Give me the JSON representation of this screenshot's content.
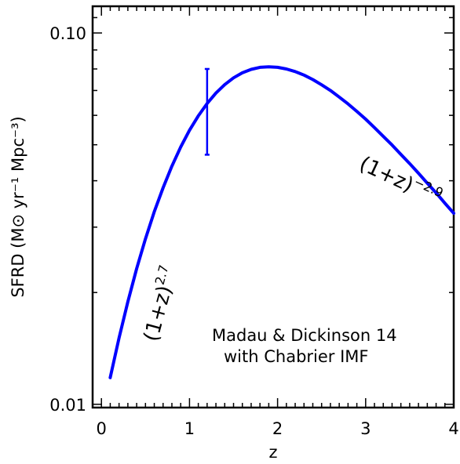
{
  "chart_data": {
    "type": "line",
    "xlabel": "z",
    "ylabel": "SFRD (M⊙ yr⁻¹ Mpc⁻³)",
    "xlim": [
      -0.1,
      4.0
    ],
    "ylim": [
      0.0098,
      0.118
    ],
    "yscale": "log",
    "x_ticks": [
      0,
      1,
      2,
      3,
      4
    ],
    "x_tick_labels": [
      "0",
      "1",
      "2",
      "3",
      "4"
    ],
    "y_ticks": [
      0.01,
      0.1
    ],
    "y_tick_labels": [
      "0.01",
      "0.10"
    ],
    "grid": false,
    "series_color": "#0000ff",
    "series": [
      {
        "x": [
          0.1,
          0.2,
          0.3,
          0.4,
          0.5,
          0.6,
          0.7,
          0.8,
          0.9,
          1.0,
          1.1,
          1.2,
          1.3,
          1.4,
          1.5,
          1.6,
          1.7,
          1.8,
          1.9,
          2.0,
          2.1,
          2.2,
          2.3,
          2.4,
          2.5,
          2.6,
          2.7,
          2.8,
          2.9,
          3.0,
          3.1,
          3.2,
          3.3,
          3.4,
          3.5,
          3.6,
          3.7,
          3.8,
          3.9,
          4.0
        ],
        "y": [
          0.0118,
          0.0151,
          0.0189,
          0.0232,
          0.0279,
          0.033,
          0.0383,
          0.0438,
          0.0493,
          0.0547,
          0.0598,
          0.0646,
          0.0689,
          0.0726,
          0.0757,
          0.0781,
          0.0798,
          0.0808,
          0.0811,
          0.0808,
          0.08,
          0.0787,
          0.077,
          0.0749,
          0.0725,
          0.07,
          0.0672,
          0.0644,
          0.0615,
          0.0586,
          0.0556,
          0.0527,
          0.0499,
          0.0471,
          0.0445,
          0.0419,
          0.0394,
          0.0371,
          0.0348,
          0.0327
        ]
      }
    ],
    "error_bar": {
      "x": 1.2,
      "y_low": 0.047,
      "y_high": 0.08
    },
    "annotations": {
      "low_z_base": "(1+z)",
      "low_z_exp": "2.7",
      "high_z_base": "(1+z)",
      "high_z_exp": "−2.9",
      "note_line1": "Madau & Dickinson 14",
      "note_line2": "with Chabrier IMF"
    }
  }
}
